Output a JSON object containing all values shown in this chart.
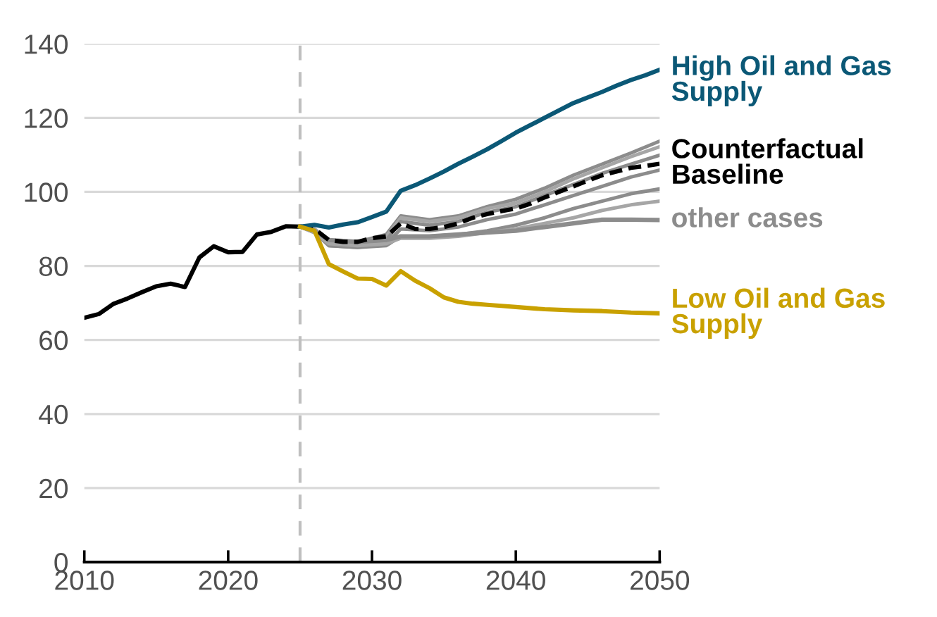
{
  "chart_data": {
    "type": "line",
    "xlim": [
      2010,
      2050
    ],
    "xticks": [
      2010,
      2020,
      2030,
      2040,
      2050
    ],
    "ylim": [
      0,
      140
    ],
    "yticks": [
      0,
      20,
      40,
      60,
      80,
      100,
      120,
      140
    ],
    "grid": "y",
    "legend": false,
    "marker": "none",
    "ref_lines": [
      {
        "axis": "x",
        "value": 2025,
        "label": null,
        "color": "#bfbfbf",
        "line_style": "dashed"
      }
    ],
    "series": [
      {
        "color": "#8c8c8c",
        "x": [
          2025,
          2026,
          2027,
          2029,
          2031,
          2032,
          2034,
          2036,
          2038,
          2040,
          2042,
          2044,
          2046,
          2048,
          2050
        ],
        "values": [
          90.6,
          90,
          86.5,
          86.5,
          88.5,
          93.5,
          92.5,
          93.5,
          96,
          98,
          101,
          104.5,
          107.5,
          110.5,
          113.7
        ]
      },
      {
        "color": "#a6a6a6",
        "x": [
          2025,
          2026,
          2027,
          2029,
          2031,
          2032,
          2034,
          2036,
          2038,
          2040,
          2042,
          2044,
          2046,
          2048,
          2050
        ],
        "values": [
          90.6,
          90,
          86,
          86,
          88,
          93,
          92,
          93,
          95.5,
          97,
          100,
          103.5,
          106.5,
          109.5,
          112.2
        ]
      },
      {
        "color": "#8c8c8c",
        "x": [
          2025,
          2026,
          2027,
          2029,
          2031,
          2032,
          2034,
          2036,
          2038,
          2040,
          2042,
          2044,
          2046,
          2048,
          2050
        ],
        "values": [
          90.6,
          89.5,
          86,
          85.5,
          87,
          92,
          91,
          92,
          94.5,
          96,
          99,
          102,
          105,
          107.5,
          109.9
        ]
      },
      {
        "color": "#8c8c8c",
        "x": [
          2025,
          2026,
          2027,
          2029,
          2031,
          2032,
          2034,
          2036,
          2038,
          2040,
          2042,
          2044,
          2046,
          2048,
          2050
        ],
        "values": [
          90.6,
          89.5,
          85.5,
          85,
          86,
          90,
          89.5,
          90.5,
          92.5,
          94,
          96.5,
          99,
          101.5,
          104,
          105.9
        ]
      },
      {
        "color": "#8c8c8c",
        "x": [
          2025,
          2026,
          2027,
          2029,
          2031,
          2032,
          2034,
          2036,
          2038,
          2040,
          2042,
          2044,
          2046,
          2048,
          2050
        ],
        "values": [
          90.6,
          89,
          85.5,
          85,
          85.5,
          88,
          88,
          88.5,
          89.5,
          91,
          93,
          95.5,
          97.5,
          99.5,
          100.8
        ]
      },
      {
        "color": "#a6a6a6",
        "x": [
          2025,
          2026,
          2027,
          2029,
          2031,
          2032,
          2034,
          2036,
          2038,
          2040,
          2042,
          2044,
          2046,
          2048,
          2050
        ],
        "values": [
          90.6,
          89,
          86,
          85.5,
          86,
          87.5,
          87.5,
          88,
          89,
          90,
          91.5,
          93,
          95,
          96.5,
          97.5
        ]
      },
      {
        "name": "other cases",
        "color": "#8c8c8c",
        "x": [
          2025,
          2026,
          2027,
          2029,
          2031,
          2032,
          2034,
          2036,
          2038,
          2040,
          2042,
          2044,
          2046,
          2048,
          2050
        ],
        "values": [
          90.6,
          89.5,
          87,
          86.5,
          87,
          88,
          88,
          88.5,
          89,
          89.5,
          90.5,
          91.5,
          92.5,
          92.5,
          92.4
        ]
      },
      {
        "name": "Counterfactual Baseline",
        "color": "#000000",
        "line_style": "dashed",
        "x": [
          2025,
          2026,
          2027,
          2028,
          2029,
          2030,
          2031,
          2032,
          2033,
          2034,
          2035,
          2036,
          2037,
          2038,
          2039,
          2040,
          2041,
          2042,
          2043,
          2044,
          2045,
          2046,
          2047,
          2048,
          2049,
          2050
        ],
        "values": [
          90.6,
          90,
          87,
          86.5,
          86.5,
          87.5,
          88,
          91.5,
          90,
          90,
          90.5,
          91.5,
          93,
          94,
          94.8,
          95.5,
          96.8,
          98.5,
          100,
          101.5,
          103,
          104.5,
          105.5,
          106.5,
          107,
          107.6
        ]
      },
      {
        "name": "High Oil and Gas Supply",
        "color": "#0b5876",
        "x": [
          2025,
          2026,
          2027,
          2028,
          2029,
          2030,
          2031,
          2032,
          2033,
          2034,
          2035,
          2036,
          2037,
          2038,
          2039,
          2040,
          2041,
          2042,
          2043,
          2044,
          2045,
          2046,
          2047,
          2048,
          2049,
          2050
        ],
        "values": [
          90.6,
          91.1,
          90.4,
          91.2,
          91.8,
          93.2,
          94.7,
          100.3,
          101.8,
          103.6,
          105.5,
          107.6,
          109.5,
          111.5,
          113.7,
          116,
          118,
          120,
          122,
          124,
          125.5,
          127,
          128.7,
          130.2,
          131.5,
          133
        ]
      },
      {
        "name": "Low Oil and Gas Supply",
        "color": "#c9a100",
        "x": [
          2025,
          2026,
          2027,
          2028,
          2029,
          2030,
          2031,
          2032,
          2033,
          2034,
          2035,
          2036,
          2037,
          2038,
          2039,
          2040,
          2042,
          2044,
          2046,
          2048,
          2050
        ],
        "values": [
          90.6,
          89.5,
          80.5,
          78.5,
          76.6,
          76.5,
          74.7,
          78.6,
          76,
          74,
          71.5,
          70.3,
          69.8,
          69.5,
          69.2,
          68.9,
          68.3,
          68,
          67.8,
          67.4,
          67.2
        ]
      },
      {
        "color": "#000000",
        "x": [
          2010,
          2011,
          2012,
          2013,
          2014,
          2015,
          2016,
          2017,
          2018,
          2019,
          2020,
          2021,
          2022,
          2023,
          2024,
          2025
        ],
        "values": [
          66,
          67,
          69.7,
          71.2,
          72.9,
          74.5,
          75.2,
          74.3,
          82.3,
          85.3,
          83.7,
          83.8,
          88.5,
          89.2,
          90.7,
          90.6
        ]
      }
    ]
  }
}
